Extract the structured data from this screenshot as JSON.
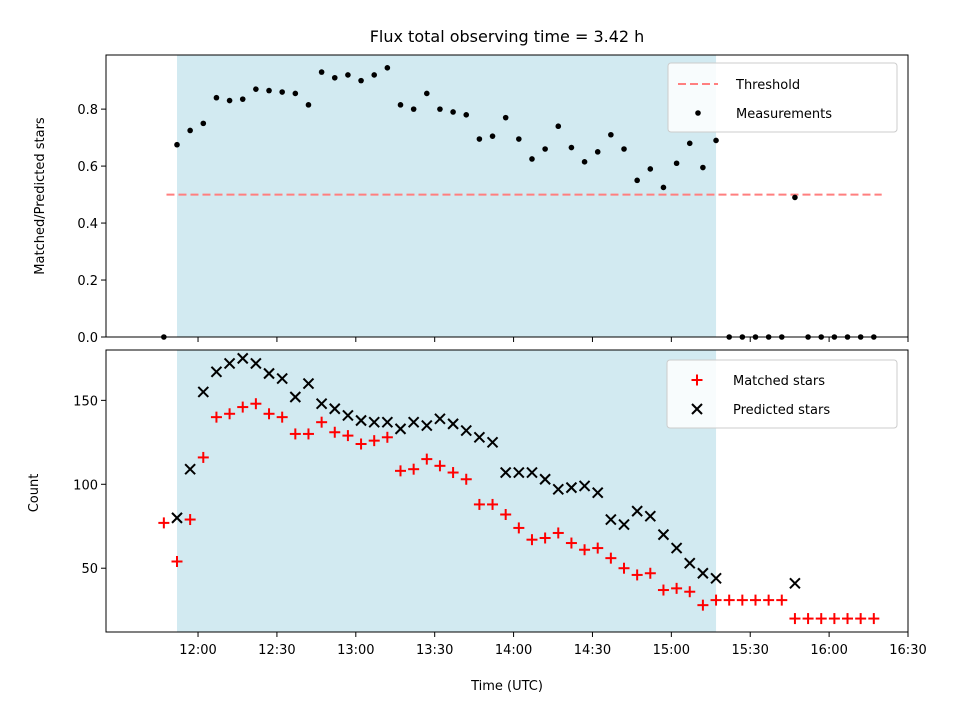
{
  "chart_data": [
    {
      "type": "scatter",
      "title": "Flux total observing time = 3.42 h",
      "xlabel": "",
      "ylabel": "Matched/Predicted stars",
      "ylim": [
        0,
        0.99
      ],
      "yticks": [
        "0.0",
        "0.2",
        "0.4",
        "0.6",
        "0.8"
      ],
      "ytick_values": [
        0,
        0.2,
        0.4,
        0.6,
        0.8
      ],
      "shaded_interval": [
        "11:52",
        "15:17"
      ],
      "shade_color": "#add8e6",
      "legend_position": "top-right",
      "threshold": {
        "name": "Threshold",
        "value": 0.5,
        "x_start": "11:48",
        "x_end": "16:20",
        "color": "#ff7f7f"
      },
      "series": [
        {
          "name": "Measurements",
          "color": "#000000",
          "points": [
            [
              "11:47",
              0.0
            ],
            [
              "11:52",
              0.675
            ],
            [
              "11:57",
              0.725
            ],
            [
              "12:02",
              0.75
            ],
            [
              "12:07",
              0.84
            ],
            [
              "12:12",
              0.83
            ],
            [
              "12:17",
              0.835
            ],
            [
              "12:22",
              0.87
            ],
            [
              "12:27",
              0.865
            ],
            [
              "12:32",
              0.86
            ],
            [
              "12:37",
              0.855
            ],
            [
              "12:42",
              0.815
            ],
            [
              "12:47",
              0.93
            ],
            [
              "12:52",
              0.91
            ],
            [
              "12:57",
              0.92
            ],
            [
              "13:02",
              0.9
            ],
            [
              "13:07",
              0.92
            ],
            [
              "13:12",
              0.945
            ],
            [
              "13:17",
              0.815
            ],
            [
              "13:22",
              0.8
            ],
            [
              "13:27",
              0.855
            ],
            [
              "13:32",
              0.8
            ],
            [
              "13:37",
              0.79
            ],
            [
              "13:42",
              0.78
            ],
            [
              "13:47",
              0.695
            ],
            [
              "13:52",
              0.705
            ],
            [
              "13:57",
              0.77
            ],
            [
              "14:02",
              0.695
            ],
            [
              "14:07",
              0.625
            ],
            [
              "14:12",
              0.66
            ],
            [
              "14:17",
              0.74
            ],
            [
              "14:22",
              0.665
            ],
            [
              "14:27",
              0.615
            ],
            [
              "14:32",
              0.65
            ],
            [
              "14:37",
              0.71
            ],
            [
              "14:42",
              0.66
            ],
            [
              "14:47",
              0.55
            ],
            [
              "14:52",
              0.59
            ],
            [
              "14:57",
              0.525
            ],
            [
              "15:02",
              0.61
            ],
            [
              "15:07",
              0.68
            ],
            [
              "15:12",
              0.595
            ],
            [
              "15:17",
              0.69
            ],
            [
              "15:22",
              0.0
            ],
            [
              "15:27",
              0.0
            ],
            [
              "15:32",
              0.0
            ],
            [
              "15:37",
              0.0
            ],
            [
              "15:42",
              0.0
            ],
            [
              "15:47",
              0.49
            ],
            [
              "15:52",
              0.0
            ],
            [
              "15:57",
              0.0
            ],
            [
              "16:02",
              0.0
            ],
            [
              "16:07",
              0.0
            ],
            [
              "16:12",
              0.0
            ],
            [
              "16:17",
              0.0
            ]
          ]
        }
      ]
    },
    {
      "type": "scatter",
      "title": "",
      "xlabel": "Time (UTC)",
      "ylabel": "Count",
      "xlim": [
        "11:25",
        "16:30"
      ],
      "xticks": [
        "12:00",
        "12:30",
        "13:00",
        "13:30",
        "14:00",
        "14:30",
        "15:00",
        "15:30",
        "16:00",
        "16:30"
      ],
      "ylim": [
        12,
        180
      ],
      "yticks": [
        "50",
        "100",
        "150"
      ],
      "ytick_values": [
        50,
        100,
        150
      ],
      "shaded_interval": [
        "11:52",
        "15:17"
      ],
      "shade_color": "#add8e6",
      "legend_position": "top-right",
      "series": [
        {
          "name": "Matched stars",
          "marker": "plus",
          "color": "#ff0000",
          "points": [
            [
              "11:47",
              77
            ],
            [
              "11:52",
              54
            ],
            [
              "11:57",
              79
            ],
            [
              "12:02",
              116
            ],
            [
              "12:07",
              140
            ],
            [
              "12:12",
              142
            ],
            [
              "12:17",
              146
            ],
            [
              "12:22",
              148
            ],
            [
              "12:27",
              142
            ],
            [
              "12:32",
              140
            ],
            [
              "12:37",
              130
            ],
            [
              "12:42",
              130
            ],
            [
              "12:47",
              137
            ],
            [
              "12:52",
              131
            ],
            [
              "12:57",
              129
            ],
            [
              "13:02",
              124
            ],
            [
              "13:07",
              126
            ],
            [
              "13:12",
              128
            ],
            [
              "13:17",
              108
            ],
            [
              "13:22",
              109
            ],
            [
              "13:27",
              115
            ],
            [
              "13:32",
              111
            ],
            [
              "13:37",
              107
            ],
            [
              "13:42",
              103
            ],
            [
              "13:47",
              88
            ],
            [
              "13:52",
              88
            ],
            [
              "13:57",
              82
            ],
            [
              "14:02",
              74
            ],
            [
              "14:07",
              67
            ],
            [
              "14:12",
              68
            ],
            [
              "14:17",
              71
            ],
            [
              "14:22",
              65
            ],
            [
              "14:27",
              61
            ],
            [
              "14:32",
              62
            ],
            [
              "14:37",
              56
            ],
            [
              "14:42",
              50
            ],
            [
              "14:47",
              46
            ],
            [
              "14:52",
              47
            ],
            [
              "14:57",
              37
            ],
            [
              "15:02",
              38
            ],
            [
              "15:07",
              36
            ],
            [
              "15:12",
              28
            ],
            [
              "15:17",
              31
            ],
            [
              "15:22",
              31
            ],
            [
              "15:27",
              31
            ],
            [
              "15:32",
              31
            ],
            [
              "15:37",
              31
            ],
            [
              "15:42",
              31
            ],
            [
              "15:47",
              20
            ],
            [
              "15:52",
              20
            ],
            [
              "15:57",
              20
            ],
            [
              "16:02",
              20
            ],
            [
              "16:07",
              20
            ],
            [
              "16:12",
              20
            ],
            [
              "16:17",
              20
            ]
          ]
        },
        {
          "name": "Predicted stars",
          "marker": "x",
          "color": "#000000",
          "points": [
            [
              "11:52",
              80
            ],
            [
              "11:57",
              109
            ],
            [
              "12:02",
              155
            ],
            [
              "12:07",
              167
            ],
            [
              "12:12",
              172
            ],
            [
              "12:17",
              175
            ],
            [
              "12:22",
              172
            ],
            [
              "12:27",
              166
            ],
            [
              "12:32",
              163
            ],
            [
              "12:37",
              152
            ],
            [
              "12:42",
              160
            ],
            [
              "12:47",
              148
            ],
            [
              "12:52",
              145
            ],
            [
              "12:57",
              141
            ],
            [
              "13:02",
              138
            ],
            [
              "13:07",
              137
            ],
            [
              "13:12",
              137
            ],
            [
              "13:17",
              133
            ],
            [
              "13:22",
              137
            ],
            [
              "13:27",
              135
            ],
            [
              "13:32",
              139
            ],
            [
              "13:37",
              136
            ],
            [
              "13:42",
              132
            ],
            [
              "13:47",
              128
            ],
            [
              "13:52",
              125
            ],
            [
              "13:57",
              107
            ],
            [
              "14:02",
              107
            ],
            [
              "14:07",
              107
            ],
            [
              "14:12",
              103
            ],
            [
              "14:17",
              97
            ],
            [
              "14:22",
              98
            ],
            [
              "14:27",
              99
            ],
            [
              "14:32",
              95
            ],
            [
              "14:37",
              79
            ],
            [
              "14:42",
              76
            ],
            [
              "14:47",
              84
            ],
            [
              "14:52",
              81
            ],
            [
              "14:57",
              70
            ],
            [
              "15:02",
              62
            ],
            [
              "15:07",
              53
            ],
            [
              "15:12",
              47
            ],
            [
              "15:17",
              44
            ],
            [
              "15:47",
              41
            ]
          ]
        }
      ]
    }
  ]
}
